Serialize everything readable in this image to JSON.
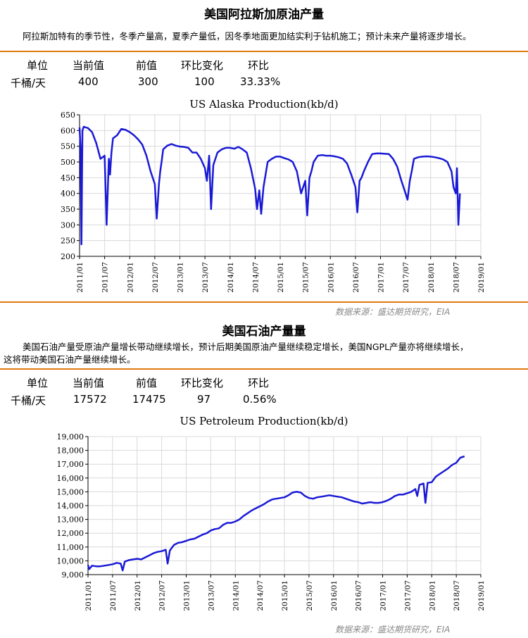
{
  "section1": {
    "title": "美国阿拉斯加原油产量",
    "description": "阿拉斯加特有的季节性，冬季产量高，夏季产量低，因冬季地面更加结实利于钻机施工；预计未来产量将逐步增长。",
    "headers": [
      "单位",
      "当前值",
      "前值",
      "环比变化",
      "环比"
    ],
    "values": [
      "千桶/天",
      "400",
      "300",
      "100",
      "33.33%"
    ],
    "source": "数据来源：盛达期货研究，EIA"
  },
  "section2": {
    "title": "美国石油产量量",
    "description_line1": "美国石油产量受原油产量增长带动继续增长，预计后期美国原油产量继续稳定增长，美国NGPL产量亦将继续增长，",
    "description_line2": "这将带动美国石油产量继续增长。",
    "headers": [
      "单位",
      "当前值",
      "前值",
      "环比变化",
      "环比"
    ],
    "values": [
      "千桶/天",
      "17572",
      "17475",
      "97",
      "0.56%"
    ],
    "source": "数据来源：盛达期货研究，EIA"
  },
  "colors": {
    "accent": "#e07b10",
    "line": "#1a1ad6",
    "grid": "#d9d9d9"
  },
  "chart_data": [
    {
      "type": "line",
      "title": "US Alaska Production(kb/d)",
      "xlabel": "",
      "ylabel": "",
      "xlim": [
        "2011-01",
        "2019-01"
      ],
      "ylim": [
        200,
        650
      ],
      "yticks": [
        "200",
        "250",
        "300",
        "350",
        "400",
        "450",
        "500",
        "550",
        "600",
        "650"
      ],
      "xticks": [
        "2011/01",
        "2011/07",
        "2012/01",
        "2012/07",
        "2013/01",
        "2013/07",
        "2014/01",
        "2014/07",
        "2015/01",
        "2015/07",
        "2016/01",
        "2016/07",
        "2017/01",
        "2017/07",
        "2018/01",
        "2018/07",
        "2019/01"
      ],
      "grid": true,
      "series": [
        {
          "x": [
            "2011-01",
            "2011-01-08",
            "2011-01-15",
            "2011-01-22",
            "2011-02",
            "2011-02-15",
            "2011-03",
            "2011-04",
            "2011-05",
            "2011-06",
            "2011-07",
            "2011-07-15",
            "2011-08",
            "2011-08-10",
            "2011-08-20",
            "2011-09",
            "2011-10",
            "2011-11",
            "2011-12",
            "2012-01",
            "2012-02",
            "2012-03",
            "2012-04",
            "2012-05",
            "2012-06",
            "2012-07",
            "2012-07-15",
            "2012-08",
            "2012-08-10",
            "2012-08-20",
            "2012-09",
            "2012-10",
            "2012-11",
            "2012-12",
            "2013-01",
            "2013-02",
            "2013-03",
            "2013-04",
            "2013-05",
            "2013-06",
            "2013-07",
            "2013-07-15",
            "2013-08",
            "2013-08-15",
            "2013-09",
            "2013-10",
            "2013-11",
            "2013-12",
            "2014-01",
            "2014-02",
            "2014-03",
            "2014-04",
            "2014-05",
            "2014-06",
            "2014-07",
            "2014-07-15",
            "2014-08",
            "2014-08-15",
            "2014-09",
            "2014-10",
            "2014-11",
            "2014-12",
            "2015-01",
            "2015-02",
            "2015-03",
            "2015-04",
            "2015-05",
            "2015-06",
            "2015-07",
            "2015-07-15",
            "2015-08",
            "2015-08-15",
            "2015-09",
            "2015-10",
            "2015-11",
            "2015-12",
            "2016-01",
            "2016-02",
            "2016-03",
            "2016-04",
            "2016-05",
            "2016-06",
            "2016-07",
            "2016-07-15",
            "2016-08",
            "2016-08-15",
            "2016-09",
            "2016-10",
            "2016-11",
            "2016-12",
            "2017-01",
            "2017-02",
            "2017-03",
            "2017-04",
            "2017-05",
            "2017-06",
            "2017-07",
            "2017-07-15",
            "2017-08",
            "2017-08-15",
            "2017-09",
            "2017-10",
            "2017-11",
            "2017-12",
            "2018-01",
            "2018-02",
            "2018-03",
            "2018-04",
            "2018-05",
            "2018-06",
            "2018-06-15",
            "2018-07",
            "2018-07-10",
            "2018-07-20",
            "2018-08"
          ],
          "values": [
            610,
            545,
            238,
            600,
            612,
            610,
            608,
            595,
            560,
            510,
            520,
            300,
            510,
            460,
            530,
            575,
            585,
            605,
            602,
            595,
            585,
            572,
            555,
            520,
            470,
            430,
            320,
            430,
            470,
            500,
            540,
            552,
            557,
            552,
            549,
            548,
            545,
            530,
            530,
            510,
            480,
            440,
            520,
            350,
            490,
            530,
            540,
            545,
            545,
            542,
            548,
            540,
            530,
            480,
            415,
            350,
            410,
            335,
            420,
            500,
            510,
            517,
            517,
            512,
            508,
            500,
            470,
            400,
            440,
            330,
            450,
            470,
            500,
            520,
            522,
            520,
            520,
            518,
            515,
            510,
            495,
            460,
            420,
            340,
            440,
            450,
            470,
            500,
            525,
            527,
            527,
            526,
            525,
            510,
            485,
            440,
            400,
            380,
            440,
            470,
            510,
            515,
            517,
            518,
            517,
            515,
            512,
            508,
            500,
            470,
            420,
            400,
            480,
            300,
            400
          ]
        }
      ]
    },
    {
      "type": "line",
      "title": "US Petroleum Production(kb/d)",
      "xlabel": "",
      "ylabel": "",
      "xlim": [
        "2011-01",
        "2019-01"
      ],
      "ylim": [
        9000,
        19000
      ],
      "yticks": [
        "9,000",
        "10,000",
        "11,000",
        "12,000",
        "13,000",
        "14,000",
        "15,000",
        "16,000",
        "17,000",
        "18,000",
        "19,000"
      ],
      "xticks": [
        "2011/01",
        "2011/07",
        "2012/01",
        "2012/07",
        "2013/01",
        "2013/07",
        "2014/01",
        "2014/07",
        "2015/01",
        "2015/07",
        "2016/01",
        "2016/07",
        "2017/01",
        "2017/07",
        "2018/01",
        "2018/07",
        "2019/01"
      ],
      "grid": true,
      "series": [
        {
          "x": [
            "2011-01",
            "2011-01-10",
            "2011-02",
            "2011-03",
            "2011-04",
            "2011-05",
            "2011-06",
            "2011-07",
            "2011-08",
            "2011-09",
            "2011-09-15",
            "2011-10",
            "2011-11",
            "2011-12",
            "2012-01",
            "2012-02",
            "2012-03",
            "2012-04",
            "2012-05",
            "2012-06",
            "2012-07",
            "2012-08",
            "2012-08-15",
            "2012-09",
            "2012-10",
            "2012-11",
            "2012-12",
            "2013-01",
            "2013-02",
            "2013-03",
            "2013-04",
            "2013-05",
            "2013-06",
            "2013-07",
            "2013-08",
            "2013-09",
            "2013-10",
            "2013-11",
            "2013-12",
            "2014-01",
            "2014-02",
            "2014-03",
            "2014-04",
            "2014-05",
            "2014-06",
            "2014-07",
            "2014-08",
            "2014-09",
            "2014-10",
            "2014-11",
            "2014-12",
            "2015-01",
            "2015-02",
            "2015-03",
            "2015-04",
            "2015-05",
            "2015-06",
            "2015-07",
            "2015-08",
            "2015-09",
            "2015-10",
            "2015-11",
            "2015-12",
            "2016-01",
            "2016-02",
            "2016-03",
            "2016-04",
            "2016-05",
            "2016-06",
            "2016-07",
            "2016-08",
            "2016-09",
            "2016-10",
            "2016-11",
            "2016-12",
            "2017-01",
            "2017-02",
            "2017-03",
            "2017-04",
            "2017-05",
            "2017-06",
            "2017-07",
            "2017-08",
            "2017-09",
            "2017-09-15",
            "2017-10",
            "2017-11",
            "2017-11-15",
            "2017-12",
            "2018-01",
            "2018-02",
            "2018-03",
            "2018-04",
            "2018-05",
            "2018-06",
            "2018-07",
            "2018-08",
            "2018-09"
          ],
          "values": [
            9700,
            9400,
            9650,
            9600,
            9600,
            9650,
            9700,
            9750,
            9850,
            9800,
            9300,
            9950,
            10050,
            10100,
            10150,
            10100,
            10250,
            10400,
            10550,
            10650,
            10700,
            10800,
            9800,
            10750,
            11150,
            11300,
            11350,
            11450,
            11550,
            11600,
            11750,
            11900,
            12000,
            12200,
            12300,
            12350,
            12600,
            12750,
            12750,
            12850,
            13000,
            13250,
            13450,
            13650,
            13800,
            13950,
            14100,
            14300,
            14450,
            14500,
            14550,
            14600,
            14750,
            14950,
            15000,
            14950,
            14700,
            14550,
            14500,
            14600,
            14650,
            14700,
            14750,
            14700,
            14650,
            14600,
            14500,
            14400,
            14300,
            14250,
            14150,
            14200,
            14250,
            14200,
            14200,
            14250,
            14350,
            14500,
            14700,
            14800,
            14800,
            14900,
            15000,
            15200,
            14700,
            15500,
            15600,
            14200,
            15650,
            15700,
            16100,
            16300,
            16500,
            16700,
            16950,
            17100,
            17475,
            17572
          ]
        }
      ]
    }
  ]
}
